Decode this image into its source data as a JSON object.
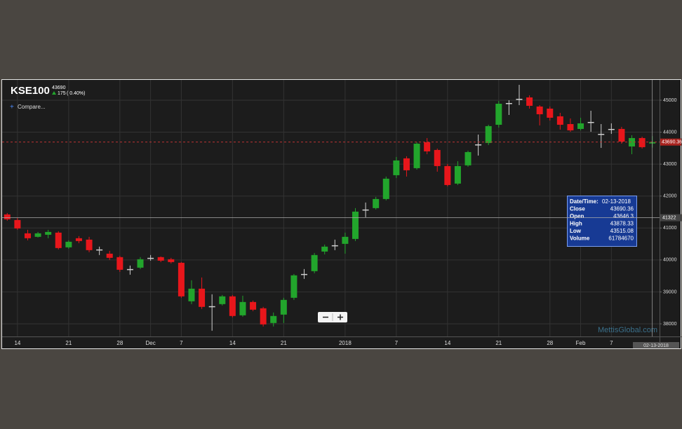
{
  "chart_data": {
    "type": "candlestick",
    "title": "KSE100",
    "last_price": 43690,
    "change": "175",
    "change_pct": "( 0.40%)",
    "compare": "Compare...",
    "watermark": "MettisGlobal.com",
    "cursor_date": "02-13-2018",
    "crosshair_value": 41322,
    "up_color": "#22a52c",
    "down_color": "#e8161b",
    "flat_color": "#cfcfcf",
    "grid": true,
    "ylim": [
      37605,
      45614
    ],
    "yticks": [
      38000,
      39000,
      40000,
      41000,
      42000,
      43000,
      44000,
      45000
    ],
    "categories": [
      null,
      "14",
      null,
      null,
      null,
      null,
      "21",
      null,
      null,
      null,
      null,
      "28",
      null,
      null,
      "Dec",
      null,
      null,
      "7",
      null,
      null,
      null,
      null,
      "14",
      null,
      null,
      null,
      null,
      "21",
      null,
      null,
      null,
      null,
      null,
      "2018",
      null,
      null,
      null,
      null,
      "7",
      null,
      null,
      null,
      null,
      "14",
      null,
      null,
      null,
      null,
      "21",
      null,
      null,
      null,
      null,
      "28",
      null,
      null,
      "Feb",
      null,
      null,
      "7",
      null,
      null,
      null,
      null
    ],
    "open": [
      41425,
      41250,
      40833,
      40724,
      40789,
      40855,
      40395,
      40680,
      40636,
      40329,
      40197,
      40088,
      39715,
      39759,
      40066,
      40088,
      40022,
      39912,
      38706,
      39101,
      38553,
      38618,
      38860,
      38267,
      38684,
      38487,
      38026,
      38289,
      38816,
      39561,
      39649,
      40263,
      40460,
      40504,
      40658,
      41579,
      41623,
      41908,
      42653,
      43180,
      42873,
      43684,
      43443,
      42939,
      42390,
      42961,
      43618,
      43662,
      44232,
      44912,
      45044,
      45088,
      44803,
      44737,
      44496,
      44254,
      44101,
      44320,
      43947,
      44101,
      44101,
      43553,
      43816,
      43646.3
    ],
    "high": [
      41469,
      41316,
      40943,
      40877,
      40943,
      40899,
      40614,
      40746,
      40724,
      40417,
      40285,
      40132,
      39825,
      40088,
      40154,
      40110,
      40066,
      39934,
      39364,
      39452,
      38925,
      38903,
      38903,
      38881,
      38728,
      38531,
      38355,
      38816,
      39561,
      39715,
      40219,
      40482,
      40636,
      40855,
      41623,
      41798,
      41974,
      42610,
      43224,
      43246,
      43684,
      43816,
      43487,
      43004,
      43092,
      43421,
      43925,
      44232,
      44978,
      45000,
      45482,
      45154,
      44846,
      44803,
      44605,
      44430,
      44452,
      44671,
      44254,
      44276,
      44167,
      43904,
      43860,
      43878.33
    ],
    "low": [
      41228,
      40943,
      40614,
      40702,
      40680,
      40329,
      40351,
      40526,
      40241,
      40154,
      40000,
      39627,
      39539,
      39715,
      39978,
      39934,
      39890,
      38816,
      38618,
      38465,
      37785,
      38575,
      38202,
      38224,
      38399,
      37917,
      37917,
      38026,
      38750,
      39408,
      39583,
      40175,
      40307,
      40197,
      40592,
      41338,
      41579,
      41864,
      42566,
      42610,
      42829,
      43311,
      42763,
      42303,
      42346,
      42917,
      43268,
      43596,
      44145,
      44539,
      44846,
      44737,
      44211,
      44364,
      44079,
      44013,
      44057,
      44013,
      43509,
      43947,
      43640,
      43311,
      43487,
      43515.08
    ],
    "close": [
      41272,
      40987,
      40680,
      40833,
      40877,
      40373,
      40570,
      40592,
      40307,
      40329,
      40066,
      39693,
      39715,
      40022,
      40066,
      39978,
      39934,
      38860,
      39101,
      38531,
      38553,
      38860,
      38246,
      38684,
      38443,
      37982,
      38246,
      38750,
      39518,
      39561,
      40154,
      40417,
      40460,
      40724,
      41513,
      41579,
      41908,
      42544,
      43114,
      42807,
      43640,
      43399,
      42939,
      42346,
      42939,
      43377,
      43618,
      44189,
      44890,
      44912,
      45044,
      44825,
      44561,
      44452,
      44232,
      44057,
      44276,
      44320,
      43947,
      44101,
      43706,
      43816,
      43531,
      43690.36
    ],
    "tooltip": {
      "date_label": "Date/Time:",
      "date": "02-13-2018",
      "close_label": "Close",
      "open_label": "Open",
      "high_label": "High",
      "low_label": "Low",
      "volume_label": "Volume",
      "volume": 61784670
    }
  }
}
